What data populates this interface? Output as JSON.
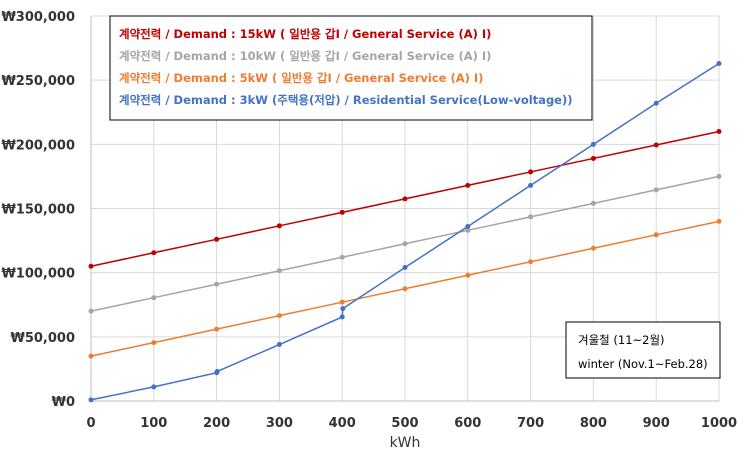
{
  "chart_data": {
    "type": "line",
    "title": "",
    "xlabel": "kWh",
    "ylabel": "",
    "x": [
      0,
      100,
      200,
      300,
      400,
      500,
      600,
      700,
      800,
      900,
      1000
    ],
    "xlim": [
      0,
      1000
    ],
    "ylim": [
      0,
      300000
    ],
    "x_ticks": [
      "0",
      "100",
      "200",
      "300",
      "400",
      "500",
      "600",
      "700",
      "800",
      "900",
      "1000"
    ],
    "y_ticks": [
      "₩0",
      "₩50,000",
      "₩100,000",
      "₩150,000",
      "₩200,000",
      "₩250,000",
      "₩300,000"
    ],
    "grid": true,
    "legend_position": "top-left",
    "series": [
      {
        "name": "계약전력 / Demand : 15kW ( 일반용 갑Ⅰ / General Service (A) Ⅰ)",
        "color": "#c00000",
        "points": [
          [
            0,
            105000
          ],
          [
            100,
            115500
          ],
          [
            200,
            126000
          ],
          [
            300,
            136500
          ],
          [
            400,
            147000
          ],
          [
            500,
            157500
          ],
          [
            600,
            168000
          ],
          [
            700,
            178500
          ],
          [
            800,
            189000
          ],
          [
            900,
            199500
          ],
          [
            1000,
            210000
          ]
        ]
      },
      {
        "name": "계약전력 / Demand : 10kW ( 일반용 갑Ⅰ / General Service (A) Ⅰ)",
        "color": "#a5a5a5",
        "points": [
          [
            0,
            70000
          ],
          [
            100,
            80500
          ],
          [
            200,
            91000
          ],
          [
            300,
            101500
          ],
          [
            400,
            112000
          ],
          [
            500,
            122500
          ],
          [
            600,
            133000
          ],
          [
            700,
            143500
          ],
          [
            800,
            154000
          ],
          [
            900,
            164500
          ],
          [
            1000,
            175000
          ]
        ]
      },
      {
        "name": "계약전력 / Demand : 5kW ( 일반용 갑Ⅰ / General Service (A) Ⅰ)",
        "color": "#ed7d31",
        "points": [
          [
            0,
            35000
          ],
          [
            100,
            45500
          ],
          [
            200,
            56000
          ],
          [
            300,
            66500
          ],
          [
            400,
            77000
          ],
          [
            500,
            87500
          ],
          [
            600,
            98000
          ],
          [
            700,
            108500
          ],
          [
            800,
            119000
          ],
          [
            900,
            129500
          ],
          [
            1000,
            140000
          ]
        ]
      },
      {
        "name": "계약전력 / Demand : 3kW (주택용(저압) / Residential Service(Low-voltage))",
        "color": "#4472c4",
        "points": [
          [
            0,
            900
          ],
          [
            100,
            11000
          ],
          [
            200,
            22000
          ],
          [
            201,
            23000
          ],
          [
            300,
            44000
          ],
          [
            400,
            65500
          ],
          [
            401,
            72000
          ],
          [
            500,
            104000
          ],
          [
            600,
            136000
          ],
          [
            700,
            168000
          ],
          [
            800,
            200000
          ],
          [
            900,
            232000
          ],
          [
            1000,
            263000
          ]
        ]
      }
    ],
    "annotation": {
      "line1": "겨울철 (11~2월)",
      "line2": "winter (Nov.1~Feb.28)"
    }
  }
}
